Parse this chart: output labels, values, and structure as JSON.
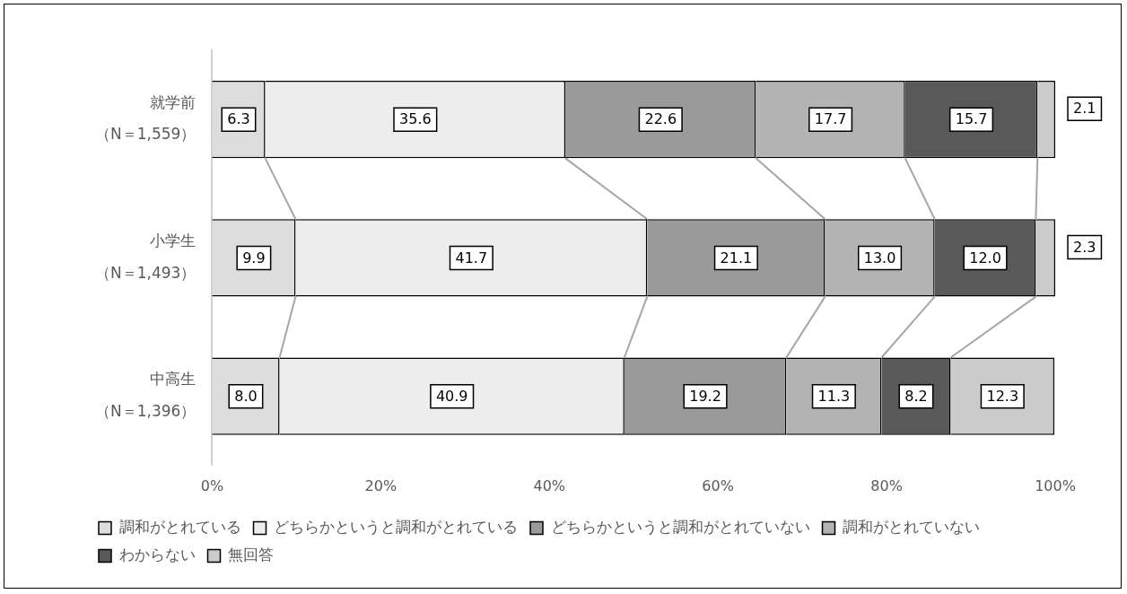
{
  "chart_data": {
    "type": "bar",
    "orientation": "horizontal",
    "stacked": true,
    "categories": [
      "就学前（N＝1,559）",
      "小学生（N＝1,493）",
      "中高生（N＝1,396）"
    ],
    "series": [
      {
        "name": "調和がとれている",
        "color": "#dddddd",
        "values": [
          6.3,
          9.9,
          8.0
        ],
        "value_labels": [
          "6.3",
          "9.9",
          "8.0"
        ]
      },
      {
        "name": "どちらかというと調和がとれている",
        "color": "#ededed",
        "values": [
          35.6,
          41.7,
          40.9
        ],
        "value_labels": [
          "35.6",
          "41.7",
          "40.9"
        ]
      },
      {
        "name": "どちらかというと調和がとれていない",
        "color": "#9a9a9a",
        "values": [
          22.6,
          21.1,
          19.2
        ],
        "value_labels": [
          "22.6",
          "21.1",
          "19.2"
        ]
      },
      {
        "name": "調和がとれていない",
        "color": "#b3b3b3",
        "values": [
          17.7,
          13.0,
          11.3
        ],
        "value_labels": [
          "17.7",
          "13.0",
          "11.3"
        ]
      },
      {
        "name": "わからない",
        "color": "#595959",
        "values": [
          15.7,
          12.0,
          8.2
        ],
        "value_labels": [
          "15.7",
          "12.0",
          "8.2"
        ]
      },
      {
        "name": "無回答",
        "color": "#cbcbcb",
        "values": [
          2.1,
          2.3,
          12.3
        ],
        "value_labels": [
          "2.1",
          "2.3",
          "12.3"
        ]
      }
    ],
    "xlim": [
      0,
      100
    ],
    "xticks": [
      {
        "value": 0,
        "label": "0%"
      },
      {
        "value": 20,
        "label": "20%"
      },
      {
        "value": 40,
        "label": "40%"
      },
      {
        "value": 60,
        "label": "60%"
      },
      {
        "value": 80,
        "label": "80%"
      },
      {
        "value": 100,
        "label": "100%"
      }
    ],
    "grid": false,
    "legend": "bottom"
  }
}
